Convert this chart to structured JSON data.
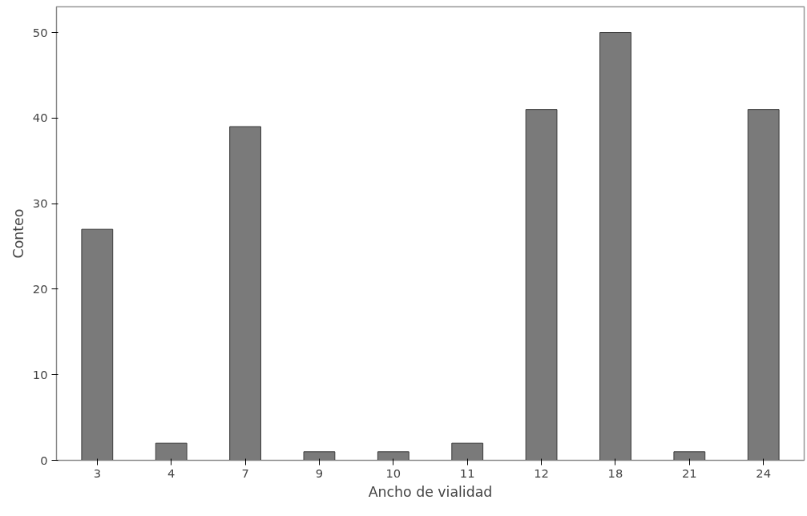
{
  "chart_data": {
    "type": "bar",
    "xlabel": "Ancho de vialidad",
    "ylabel": "Conteo",
    "categories": [
      "3",
      "4",
      "7",
      "9",
      "10",
      "11",
      "12",
      "18",
      "21",
      "24"
    ],
    "values": [
      27,
      2,
      39,
      1,
      1,
      2,
      41,
      50,
      1,
      41
    ],
    "color": "#7a7a7a",
    "ylim": [
      0,
      53
    ],
    "yticks": [
      0,
      10,
      20,
      30,
      40,
      50
    ],
    "grid": false
  }
}
